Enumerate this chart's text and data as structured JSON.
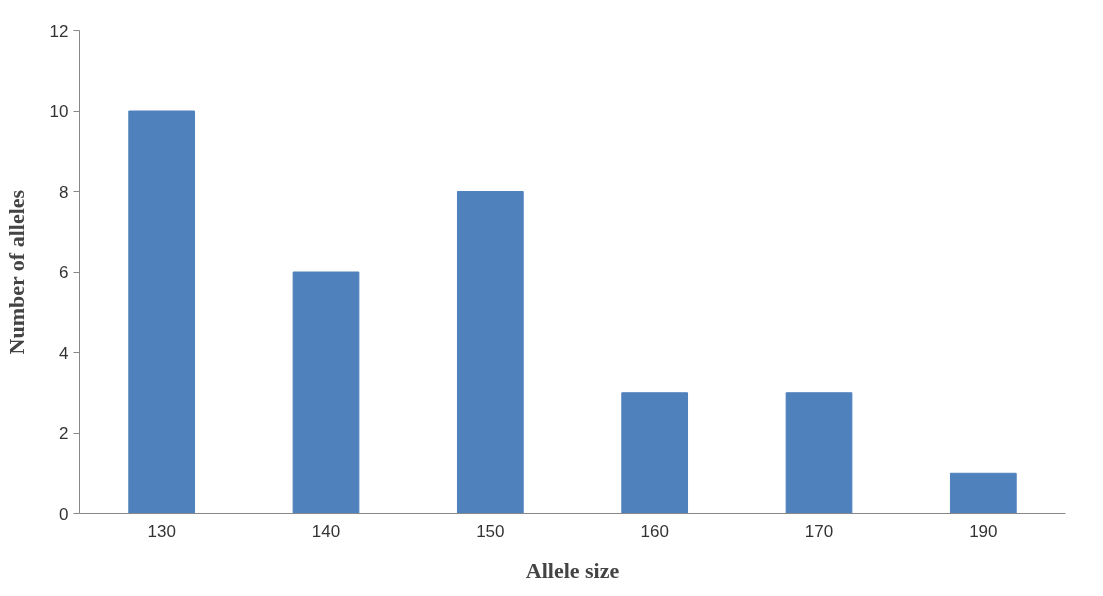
{
  "chart_data": {
    "type": "bar",
    "xlabel": "Allele size",
    "ylabel": "Number of alleles",
    "categories": [
      "130",
      "140",
      "150",
      "160",
      "170",
      "190"
    ],
    "values": [
      10,
      6,
      8,
      3,
      3,
      1
    ],
    "color": "#4f81bd",
    "ylim": [
      0,
      12
    ],
    "yticks": [
      0,
      2,
      4,
      6,
      8,
      10,
      12
    ],
    "grid": false
  }
}
